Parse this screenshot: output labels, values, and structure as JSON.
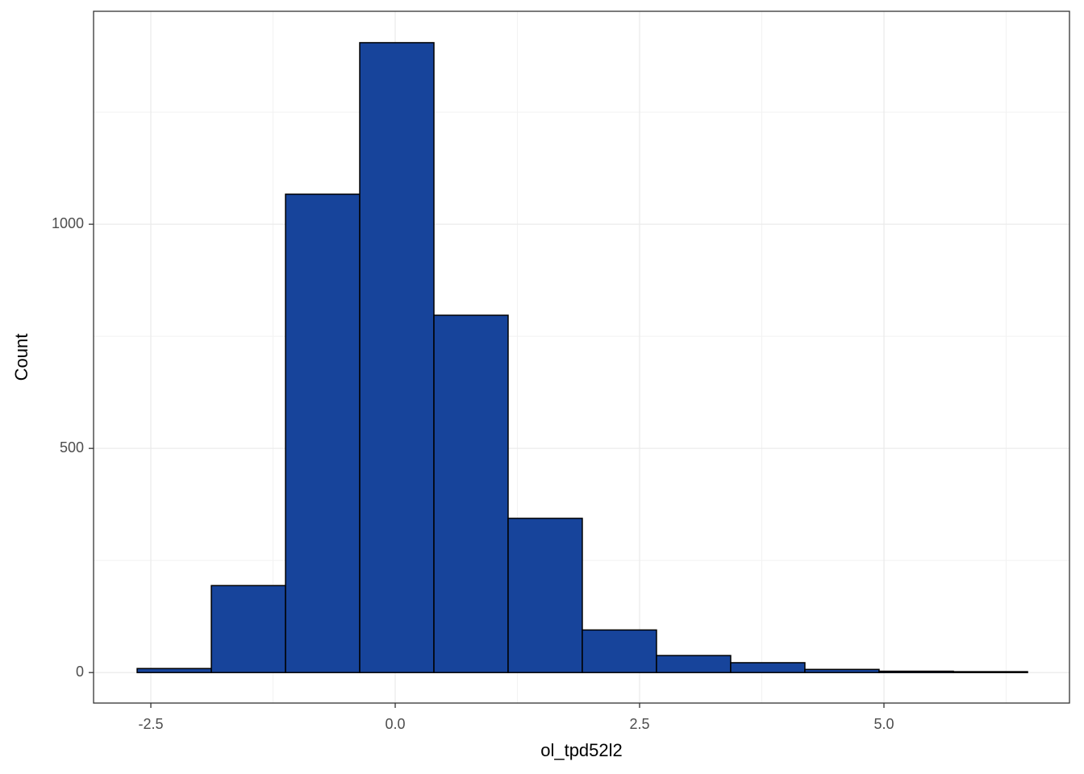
{
  "chart_data": {
    "type": "histogram",
    "xlabel": "ol_tpd52l2",
    "ylabel": "Count",
    "bins": [
      -2.64,
      -1.881,
      -1.122,
      -0.363,
      0.396,
      1.155,
      1.914,
      2.673,
      3.432,
      4.191,
      4.95,
      5.71,
      6.469
    ],
    "values": [
      9,
      194,
      1067,
      1405,
      797,
      344,
      95,
      38,
      22,
      7,
      3,
      2
    ],
    "color": "#17449b",
    "edgecolor": "#000000",
    "xlim": [
      -3.086,
      6.898
    ],
    "ylim": [
      -68,
      1475
    ],
    "xticks": [
      -2.5,
      {
        "value": 0,
        "label": "0.0"
      },
      2.5,
      {
        "value": 5,
        "label": "5.0"
      }
    ],
    "yticks": [
      0,
      500,
      1000
    ],
    "xminor": [
      -1.25,
      1.25,
      3.75,
      6.25
    ],
    "yminor": [
      250,
      750,
      1250
    ],
    "grid": true
  }
}
